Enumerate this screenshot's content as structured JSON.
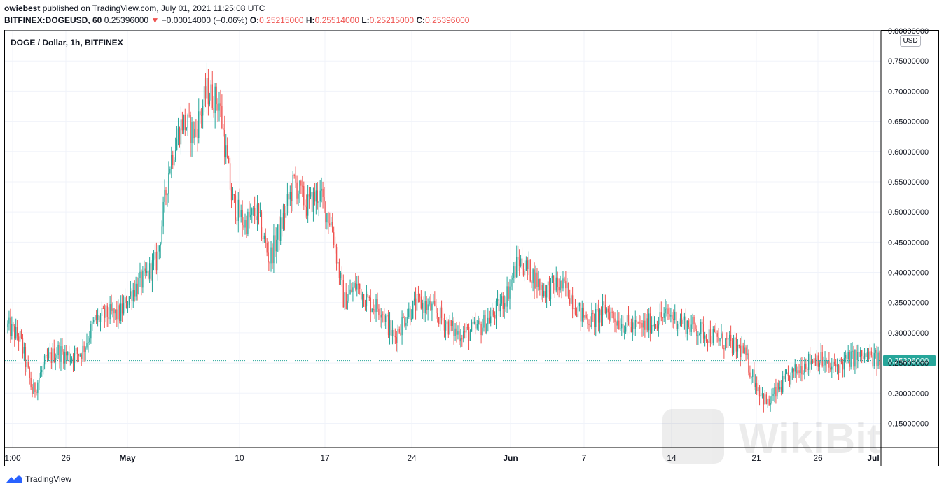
{
  "header": {
    "author": "owiebest",
    "published_text": "published on TradingView.com, July 01, 2021 11:25:08 UTC",
    "symbol": "BITFINEX:DOGEUSD, 60",
    "price": "0.25396000",
    "change_arrow": "▼",
    "change": "−0.00014000 (−0.06%)",
    "o_label": "O:",
    "o_value": "0.25215000",
    "h_label": "H:",
    "h_value": "0.25514000",
    "l_label": "L:",
    "l_value": "0.25215000",
    "c_label": "C:",
    "c_value": "0.25396000"
  },
  "legend": "DOGE / Dollar, 1h, BITFINEX",
  "currency_button": "USD",
  "footer": {
    "brand": "TradingView",
    "logo_icon": "tradingview-logo-icon"
  },
  "watermark": {
    "text": "WikiBit",
    "icon": "wikibit-logo-icon"
  },
  "colors": {
    "up": "#26a69a",
    "down": "#ef5350",
    "last_price": "#26a69a",
    "grid": "#f0f3fa"
  },
  "chart_data": {
    "type": "candlestick",
    "title": "DOGE / Dollar, 1h, BITFINEX",
    "y_axis_position": "right",
    "ylim": [
      0.11,
      0.8
    ],
    "y_ticks": [
      "0.15000000",
      "0.20000000",
      "0.25000000",
      "0.30000000",
      "0.35000000",
      "0.40000000",
      "0.45000000",
      "0.50000000",
      "0.55000000",
      "0.60000000",
      "0.65000000",
      "0.70000000",
      "0.75000000",
      "0.80000000"
    ],
    "x_ticks": [
      "1:00",
      "26",
      "May",
      "10",
      "17",
      "24",
      "Jun",
      "7",
      "14",
      "21",
      "26",
      "Jul"
    ],
    "last_price": 0.25396,
    "last_price_label": "0.25396000",
    "close_path": [
      [
        "1:00",
        0.31
      ],
      [
        "Apr 22",
        0.29
      ],
      [
        "Apr 23",
        0.2
      ],
      [
        "Apr 24",
        0.25
      ],
      [
        "26",
        0.27
      ],
      [
        "Apr 27",
        0.26
      ],
      [
        "Apr 28",
        0.27
      ],
      [
        "Apr 29",
        0.32
      ],
      [
        "Apr 30",
        0.33
      ],
      [
        "May",
        0.33
      ],
      [
        "May 2",
        0.37
      ],
      [
        "May 3",
        0.39
      ],
      [
        "May 4",
        0.42
      ],
      [
        "May 5",
        0.58
      ],
      [
        "May 6",
        0.65
      ],
      [
        "May 7",
        0.63
      ],
      [
        "May 8",
        0.7
      ],
      [
        "May 9",
        0.68
      ],
      [
        "10",
        0.52
      ],
      [
        "May 11",
        0.48
      ],
      [
        "May 12",
        0.5
      ],
      [
        "May 13",
        0.42
      ],
      [
        "May 14",
        0.48
      ],
      [
        "May 15",
        0.55
      ],
      [
        "May 16",
        0.51
      ],
      [
        "17",
        0.53
      ],
      [
        "May 18",
        0.48
      ],
      [
        "May 19",
        0.35
      ],
      [
        "May 20",
        0.38
      ],
      [
        "May 21",
        0.35
      ],
      [
        "May 22",
        0.34
      ],
      [
        "May 23",
        0.29
      ],
      [
        "24",
        0.33
      ],
      [
        "May 25",
        0.35
      ],
      [
        "May 26",
        0.34
      ],
      [
        "May 27",
        0.32
      ],
      [
        "May 28",
        0.3
      ],
      [
        "May 29",
        0.3
      ],
      [
        "May 30",
        0.31
      ],
      [
        "May 31",
        0.33
      ],
      [
        "Jun",
        0.36
      ],
      [
        "Jun 2",
        0.42
      ],
      [
        "Jun 3",
        0.4
      ],
      [
        "Jun 4",
        0.37
      ],
      [
        "Jun 5",
        0.38
      ],
      [
        "Jun 6",
        0.37
      ],
      [
        "7",
        0.33
      ],
      [
        "Jun 8",
        0.32
      ],
      [
        "Jun 9",
        0.34
      ],
      [
        "Jun 10",
        0.32
      ],
      [
        "Jun 11",
        0.31
      ],
      [
        "Jun 12",
        0.31
      ],
      [
        "Jun 13",
        0.32
      ],
      [
        "14",
        0.33
      ],
      [
        "Jun 15",
        0.32
      ],
      [
        "Jun 16",
        0.31
      ],
      [
        "Jun 17",
        0.3
      ],
      [
        "Jun 18",
        0.29
      ],
      [
        "Jun 19",
        0.28
      ],
      [
        "Jun 20",
        0.27
      ],
      [
        "21",
        0.22
      ],
      [
        "Jun 22",
        0.18
      ],
      [
        "Jun 23",
        0.21
      ],
      [
        "Jun 24",
        0.23
      ],
      [
        "Jun 25",
        0.25
      ],
      [
        "26",
        0.26
      ],
      [
        "Jun 27",
        0.24
      ],
      [
        "Jun 28",
        0.25
      ],
      [
        "Jun 29",
        0.26
      ],
      [
        "Jun 30",
        0.26
      ],
      [
        "Jul",
        0.254
      ]
    ]
  }
}
